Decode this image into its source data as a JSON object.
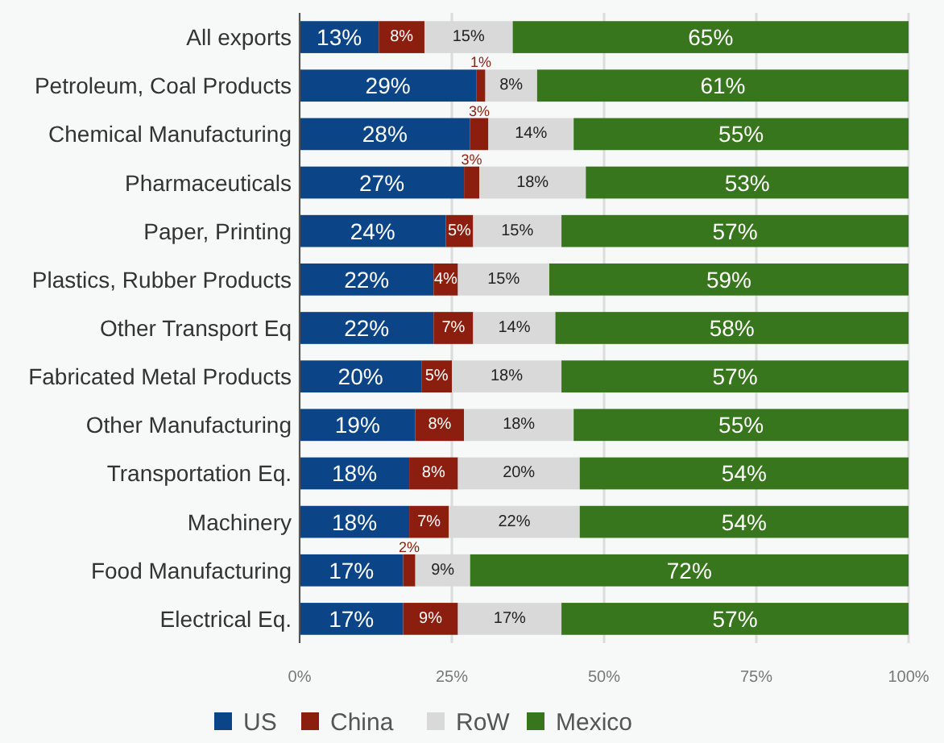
{
  "chart_data": {
    "type": "bar",
    "orientation": "horizontal",
    "stacked": true,
    "categories": [
      "All exports",
      "Petroleum, Coal Products",
      "Chemical Manufacturing",
      "Pharmaceuticals",
      "Paper, Printing",
      "Plastics, Rubber Products",
      "Other Transport Eq",
      "Fabricated Metal Products",
      "Other Manufacturing",
      "Transportation Eq.",
      "Machinery",
      "Food Manufacturing",
      "Electrical Eq."
    ],
    "series": [
      {
        "name": "US",
        "color": "#0b4587",
        "values": [
          13,
          29,
          28,
          27,
          24,
          22,
          22,
          20,
          19,
          18,
          18,
          17,
          17
        ],
        "value_labels": [
          "13%",
          "29%",
          "28%",
          "27%",
          "24%",
          "22%",
          "22%",
          "20%",
          "19%",
          "18%",
          "18%",
          "17%",
          "17%"
        ]
      },
      {
        "name": "China",
        "color": "#8b1e0e",
        "values": [
          7.5,
          1.5,
          3,
          2.5,
          4.5,
          4,
          6.5,
          5,
          8,
          8,
          6.5,
          2,
          9
        ],
        "value_labels": [
          "8%",
          "1%",
          "3%",
          "3%",
          "5%",
          "4%",
          "7%",
          "5%",
          "8%",
          "8%",
          "7%",
          "2%",
          "9%"
        ]
      },
      {
        "name": "RoW",
        "color": "#d9d9d9",
        "values": [
          14.5,
          8.5,
          14,
          17.5,
          14.5,
          15,
          13.5,
          18,
          18,
          20,
          21.5,
          9,
          17
        ],
        "value_labels": [
          "15%",
          "8%",
          "14%",
          "18%",
          "15%",
          "15%",
          "14%",
          "18%",
          "18%",
          "20%",
          "22%",
          "9%",
          "17%"
        ]
      },
      {
        "name": "Mexico",
        "color": "#38761d",
        "values": [
          65,
          61,
          55,
          53,
          57,
          59,
          58,
          57,
          55,
          54,
          54,
          72,
          57
        ],
        "value_labels": [
          "65%",
          "61%",
          "55%",
          "53%",
          "57%",
          "59%",
          "58%",
          "57%",
          "55%",
          "54%",
          "54%",
          "72%",
          "57%"
        ]
      }
    ],
    "xlim": [
      0,
      100
    ],
    "xticks": [
      {
        "value": 0,
        "label": "0%"
      },
      {
        "value": 25,
        "label": "25%"
      },
      {
        "value": 50,
        "label": "50%"
      },
      {
        "value": 75,
        "label": "75%"
      },
      {
        "value": 100,
        "label": "100%"
      }
    ],
    "grid": "x",
    "legend": "bottom"
  }
}
